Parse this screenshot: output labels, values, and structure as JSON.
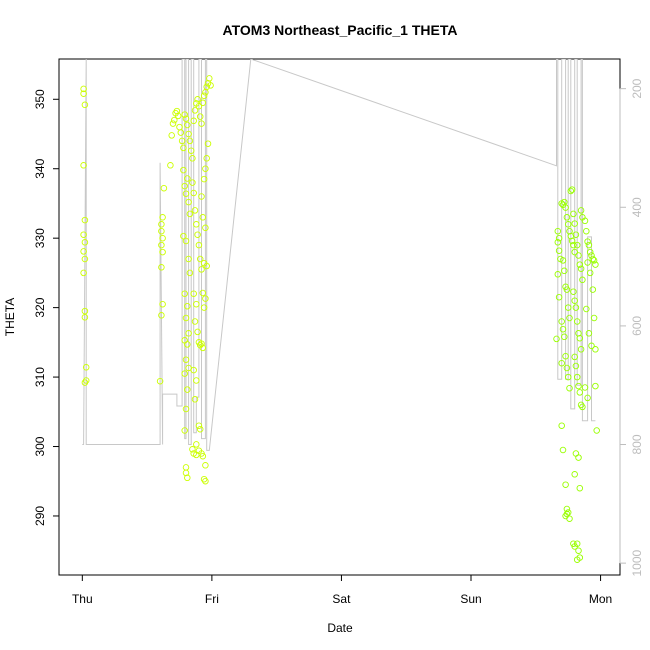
{
  "chart_data": {
    "type": "scatter",
    "title": "ATOM3 Northeast_Pacific_1 THETA",
    "xlabel": "Date",
    "ylabel": "THETA",
    "x_ticks": [
      "Thu",
      "Fri",
      "Sat",
      "Sun",
      "Mon"
    ],
    "xlim_days": [
      -0.18,
      4.15
    ],
    "ylim": [
      281.5,
      355.8
    ],
    "y_ticks": [
      290,
      300,
      310,
      320,
      330,
      340,
      350
    ],
    "y2_ticks": [
      200,
      400,
      600,
      800,
      1000
    ],
    "y2lim": [
      1020,
      150
    ],
    "colors": {
      "early": "#ccff00",
      "late": "#99ff00",
      "line": "#c8c8c8",
      "axis": "#000000",
      "y2axis": "#bdbdbd"
    },
    "points": [
      [
        0.01,
        351.5
      ],
      [
        0.01,
        350.8
      ],
      [
        0.02,
        349.2
      ],
      [
        0.01,
        340.5
      ],
      [
        0.02,
        332.6
      ],
      [
        0.01,
        330.5
      ],
      [
        0.02,
        329.4
      ],
      [
        0.01,
        328.1
      ],
      [
        0.02,
        327.0
      ],
      [
        0.01,
        325.0
      ],
      [
        0.02,
        319.5
      ],
      [
        0.02,
        318.6
      ],
      [
        0.03,
        311.4
      ],
      [
        0.03,
        309.5
      ],
      [
        0.02,
        309.2
      ],
      [
        0.62,
        333.0
      ],
      [
        0.61,
        332.0
      ],
      [
        0.61,
        331.0
      ],
      [
        0.62,
        330.0
      ],
      [
        0.61,
        329.0
      ],
      [
        0.62,
        328.0
      ],
      [
        0.61,
        325.8
      ],
      [
        0.62,
        320.5
      ],
      [
        0.61,
        318.9
      ],
      [
        0.63,
        337.2
      ],
      [
        0.6,
        309.4
      ],
      [
        0.68,
        340.5
      ],
      [
        0.69,
        344.8
      ],
      [
        0.7,
        346.5
      ],
      [
        0.71,
        347.0
      ],
      [
        0.72,
        348.0
      ],
      [
        0.73,
        348.3
      ],
      [
        0.74,
        347.6
      ],
      [
        0.75,
        346.0
      ],
      [
        0.76,
        345.2
      ],
      [
        0.77,
        344.0
      ],
      [
        0.78,
        343.0
      ],
      [
        0.79,
        347.8
      ],
      [
        0.8,
        347.2
      ],
      [
        0.81,
        346.3
      ],
      [
        0.82,
        345.0
      ],
      [
        0.83,
        344.0
      ],
      [
        0.84,
        342.6
      ],
      [
        0.85,
        341.5
      ],
      [
        0.86,
        346.9
      ],
      [
        0.87,
        348.4
      ],
      [
        0.88,
        349.4
      ],
      [
        0.89,
        350.0
      ],
      [
        0.9,
        349.0
      ],
      [
        0.91,
        347.5
      ],
      [
        0.92,
        346.5
      ],
      [
        0.93,
        349.5
      ],
      [
        0.94,
        350.5
      ],
      [
        0.95,
        351.0
      ],
      [
        0.96,
        351.8
      ],
      [
        0.97,
        352.3
      ],
      [
        0.98,
        353.0
      ],
      [
        0.99,
        352.0
      ],
      [
        0.78,
        339.8
      ],
      [
        0.79,
        337.5
      ],
      [
        0.8,
        336.4
      ],
      [
        0.81,
        338.6
      ],
      [
        0.82,
        335.2
      ],
      [
        0.83,
        333.5
      ],
      [
        0.78,
        330.3
      ],
      [
        0.8,
        329.6
      ],
      [
        0.82,
        327.0
      ],
      [
        0.83,
        325.0
      ],
      [
        0.79,
        322.0
      ],
      [
        0.81,
        320.2
      ],
      [
        0.8,
        318.5
      ],
      [
        0.82,
        316.3
      ],
      [
        0.79,
        315.3
      ],
      [
        0.81,
        314.7
      ],
      [
        0.8,
        312.5
      ],
      [
        0.82,
        311.3
      ],
      [
        0.79,
        310.5
      ],
      [
        0.81,
        308.2
      ],
      [
        0.8,
        305.4
      ],
      [
        0.79,
        302.3
      ],
      [
        0.85,
        338.0
      ],
      [
        0.86,
        336.5
      ],
      [
        0.87,
        334.0
      ],
      [
        0.88,
        332.0
      ],
      [
        0.89,
        330.5
      ],
      [
        0.9,
        329.0
      ],
      [
        0.91,
        327.0
      ],
      [
        0.92,
        325.5
      ],
      [
        0.86,
        322.0
      ],
      [
        0.88,
        320.5
      ],
      [
        0.87,
        318.0
      ],
      [
        0.89,
        316.5
      ],
      [
        0.9,
        315.0
      ],
      [
        0.91,
        314.6
      ],
      [
        0.92,
        314.8
      ],
      [
        0.93,
        314.2
      ],
      [
        0.86,
        311.0
      ],
      [
        0.88,
        309.5
      ],
      [
        0.87,
        306.8
      ],
      [
        0.9,
        303.0
      ],
      [
        0.91,
        302.5
      ],
      [
        0.92,
        336.0
      ],
      [
        0.94,
        338.5
      ],
      [
        0.95,
        340.0
      ],
      [
        0.96,
        341.5
      ],
      [
        0.97,
        343.6
      ],
      [
        0.93,
        333.0
      ],
      [
        0.95,
        331.5
      ],
      [
        0.94,
        326.4
      ],
      [
        0.96,
        326.0
      ],
      [
        0.93,
        322.1
      ],
      [
        0.95,
        321.3
      ],
      [
        0.94,
        320.0
      ],
      [
        0.8,
        297.0
      ],
      [
        0.8,
        296.2
      ],
      [
        0.81,
        295.5
      ],
      [
        0.85,
        299.6
      ],
      [
        0.86,
        299.0
      ],
      [
        0.88,
        298.8
      ],
      [
        0.9,
        299.4
      ],
      [
        0.92,
        299.0
      ],
      [
        0.93,
        298.6
      ],
      [
        0.95,
        297.3
      ],
      [
        0.94,
        295.3
      ],
      [
        0.95,
        295.0
      ],
      [
        0.88,
        300.3
      ],
      [
        3.67,
        331.0
      ],
      [
        3.68,
        330.0
      ],
      [
        3.67,
        329.4
      ],
      [
        3.68,
        328.2
      ],
      [
        3.69,
        327.0
      ],
      [
        3.67,
        324.8
      ],
      [
        3.68,
        321.5
      ],
      [
        3.7,
        318.0
      ],
      [
        3.66,
        315.5
      ],
      [
        3.7,
        312.0
      ],
      [
        3.7,
        335.0
      ],
      [
        3.71,
        334.8
      ],
      [
        3.72,
        335.2
      ],
      [
        3.73,
        334.4
      ],
      [
        3.74,
        333.0
      ],
      [
        3.75,
        332.0
      ],
      [
        3.76,
        331.0
      ],
      [
        3.77,
        330.3
      ],
      [
        3.78,
        329.6
      ],
      [
        3.79,
        329.0
      ],
      [
        3.8,
        328.0
      ],
      [
        3.71,
        326.8
      ],
      [
        3.72,
        325.3
      ],
      [
        3.73,
        323.0
      ],
      [
        3.74,
        322.6
      ],
      [
        3.75,
        320.0
      ],
      [
        3.76,
        318.5
      ],
      [
        3.71,
        316.9
      ],
      [
        3.72,
        315.8
      ],
      [
        3.73,
        313.0
      ],
      [
        3.74,
        311.3
      ],
      [
        3.75,
        310.0
      ],
      [
        3.76,
        308.4
      ],
      [
        3.77,
        336.8
      ],
      [
        3.78,
        337.0
      ],
      [
        3.79,
        333.5
      ],
      [
        3.8,
        332.1
      ],
      [
        3.81,
        330.5
      ],
      [
        3.82,
        329.0
      ],
      [
        3.83,
        327.5
      ],
      [
        3.84,
        326.2
      ],
      [
        3.85,
        325.6
      ],
      [
        3.86,
        324.0
      ],
      [
        3.79,
        322.3
      ],
      [
        3.8,
        321.0
      ],
      [
        3.81,
        320.0
      ],
      [
        3.82,
        318.0
      ],
      [
        3.83,
        316.3
      ],
      [
        3.84,
        315.6
      ],
      [
        3.85,
        314.0
      ],
      [
        3.8,
        312.9
      ],
      [
        3.81,
        311.6
      ],
      [
        3.82,
        310.0
      ],
      [
        3.83,
        308.7
      ],
      [
        3.84,
        307.8
      ],
      [
        3.85,
        306.0
      ],
      [
        3.86,
        305.7
      ],
      [
        3.85,
        334.0
      ],
      [
        3.86,
        333.0
      ],
      [
        3.88,
        332.5
      ],
      [
        3.89,
        331.0
      ],
      [
        3.9,
        329.5
      ],
      [
        3.91,
        329.0
      ],
      [
        3.92,
        328.0
      ],
      [
        3.93,
        327.5
      ],
      [
        3.94,
        327.0
      ],
      [
        3.95,
        326.8
      ],
      [
        3.96,
        326.2
      ],
      [
        3.9,
        326.5
      ],
      [
        3.92,
        325.0
      ],
      [
        3.94,
        322.6
      ],
      [
        3.95,
        318.5
      ],
      [
        3.89,
        319.8
      ],
      [
        3.91,
        316.3
      ],
      [
        3.93,
        314.5
      ],
      [
        3.96,
        314.0
      ],
      [
        3.88,
        308.5
      ],
      [
        3.9,
        307.0
      ],
      [
        3.96,
        308.7
      ],
      [
        3.97,
        302.3
      ],
      [
        3.7,
        303.0
      ],
      [
        3.71,
        299.5
      ],
      [
        3.73,
        294.5
      ],
      [
        3.74,
        291.0
      ],
      [
        3.75,
        290.5
      ],
      [
        3.73,
        290.0
      ],
      [
        3.76,
        289.6
      ],
      [
        3.74,
        290.3
      ],
      [
        3.8,
        296.0
      ],
      [
        3.81,
        299.0
      ],
      [
        3.83,
        298.4
      ],
      [
        3.84,
        294.0
      ],
      [
        3.79,
        286.0
      ],
      [
        3.8,
        285.6
      ],
      [
        3.82,
        286.0
      ],
      [
        3.83,
        285.0
      ],
      [
        3.84,
        284.0
      ],
      [
        3.82,
        283.7
      ]
    ],
    "line": [
      [
        0.0,
        800
      ],
      [
        0.01,
        800
      ],
      [
        0.03,
        150
      ],
      [
        0.03,
        800
      ],
      [
        0.6,
        800
      ],
      [
        0.6,
        325
      ],
      [
        0.62,
        800
      ],
      [
        0.62,
        715
      ],
      [
        0.73,
        715
      ],
      [
        0.73,
        735
      ],
      [
        0.77,
        735
      ],
      [
        0.77,
        150
      ],
      [
        0.79,
        150
      ],
      [
        0.79,
        790
      ],
      [
        0.8,
        790
      ],
      [
        0.8,
        150
      ],
      [
        0.82,
        150
      ],
      [
        0.82,
        800
      ],
      [
        0.84,
        800
      ],
      [
        0.84,
        150
      ],
      [
        0.86,
        150
      ],
      [
        0.86,
        780
      ],
      [
        0.88,
        780
      ],
      [
        0.88,
        720
      ],
      [
        0.9,
        720
      ],
      [
        0.9,
        150
      ],
      [
        0.92,
        150
      ],
      [
        0.92,
        790
      ],
      [
        0.95,
        790
      ],
      [
        0.95,
        150
      ],
      [
        0.96,
        150
      ],
      [
        0.96,
        810
      ],
      [
        0.98,
        810
      ],
      [
        1.3,
        150
      ],
      [
        3.66,
        330
      ],
      [
        3.66,
        150
      ],
      [
        3.67,
        150
      ],
      [
        3.67,
        690
      ],
      [
        3.7,
        690
      ],
      [
        3.7,
        150
      ],
      [
        3.73,
        150
      ],
      [
        3.73,
        690
      ],
      [
        3.75,
        690
      ],
      [
        3.75,
        150
      ],
      [
        3.77,
        150
      ],
      [
        3.77,
        740
      ],
      [
        3.8,
        740
      ],
      [
        3.8,
        150
      ],
      [
        3.82,
        150
      ],
      [
        3.82,
        700
      ],
      [
        3.85,
        700
      ],
      [
        3.85,
        150
      ],
      [
        3.86,
        150
      ],
      [
        3.86,
        760
      ],
      [
        3.9,
        760
      ],
      [
        3.9,
        450
      ],
      [
        3.93,
        450
      ],
      [
        3.93,
        760
      ],
      [
        3.96,
        760
      ]
    ]
  }
}
